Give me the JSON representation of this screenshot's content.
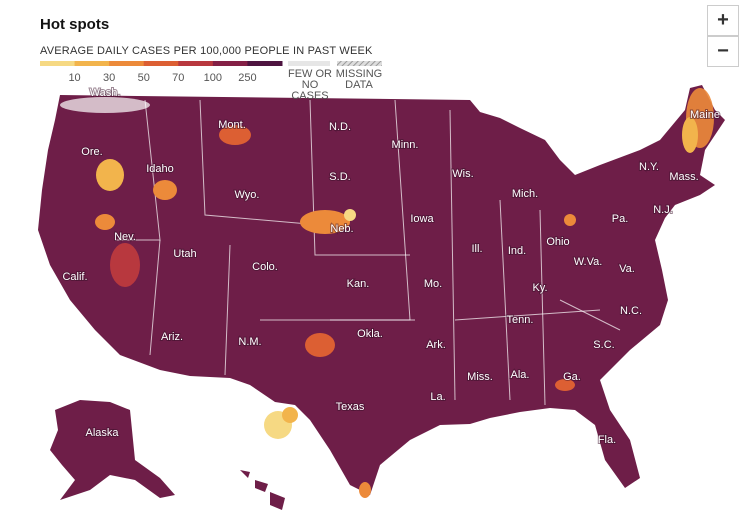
{
  "header": {
    "title": "Hot spots"
  },
  "legend": {
    "label": "AVERAGE DAILY CASES PER 100,000 PEOPLE IN PAST WEEK",
    "ticks": [
      10,
      30,
      50,
      70,
      100,
      250
    ],
    "colors": [
      "#f6d983",
      "#f2b44c",
      "#ec8a3a",
      "#dc5f33",
      "#b8383e",
      "#842046",
      "#4e1440"
    ],
    "few_label": "FEW OR NO CASES",
    "few_color": "#e6e6e6",
    "missing_label": "MISSING DATA"
  },
  "zoom": {
    "in": "+",
    "out": "−"
  },
  "map": {
    "land_color": "#6e1e48",
    "state_labels": [
      "Wash.",
      "Ore.",
      "Calif.",
      "Nev.",
      "Idaho",
      "Mont.",
      "Wyo.",
      "Utah",
      "Ariz.",
      "Colo.",
      "N.M.",
      "N.D.",
      "S.D.",
      "Neb.",
      "Kan.",
      "Okla.",
      "Texas",
      "Minn.",
      "Iowa",
      "Mo.",
      "Ark.",
      "La.",
      "Wis.",
      "Ill.",
      "Ind.",
      "Ohio",
      "Mich.",
      "Ky.",
      "Tenn.",
      "Miss.",
      "Ala.",
      "Ga.",
      "Fla.",
      "S.C.",
      "N.C.",
      "Va.",
      "W.Va.",
      "Pa.",
      "N.Y.",
      "Maine",
      "Mass.",
      "N.J.",
      "Alaska"
    ]
  }
}
